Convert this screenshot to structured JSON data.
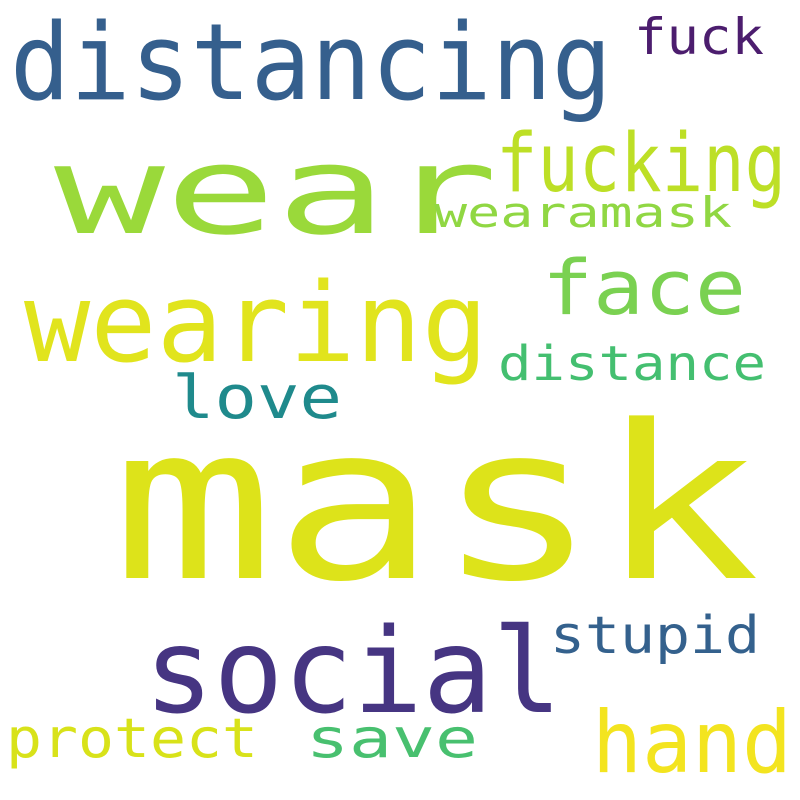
{
  "words": {
    "mask": {
      "text": "mask",
      "color": "#dde31a"
    },
    "wear": {
      "text": "wear",
      "color": "#9ad93a"
    },
    "distancing": {
      "text": "distancing",
      "color": "#355f8d"
    },
    "wearing": {
      "text": "wearing",
      "color": "#e1e41d"
    },
    "social": {
      "text": "social",
      "color": "#463582"
    },
    "face": {
      "text": "face",
      "color": "#7ad151"
    },
    "fucking": {
      "text": "fucking",
      "color": "#bddf26"
    },
    "hand": {
      "text": "hand",
      "color": "#f3e41f"
    },
    "wearamask": {
      "text": "wearamask",
      "color": "#90d743"
    },
    "distance": {
      "text": "distance",
      "color": "#44bf70"
    },
    "love": {
      "text": "love",
      "color": "#1f8a8c"
    },
    "stupid": {
      "text": "stupid",
      "color": "#34618d"
    },
    "save": {
      "text": "save",
      "color": "#48c06f"
    },
    "protect": {
      "text": "protect",
      "color": "#d8e219"
    },
    "fuck": {
      "text": "fuck",
      "color": "#4c1d6e"
    }
  }
}
